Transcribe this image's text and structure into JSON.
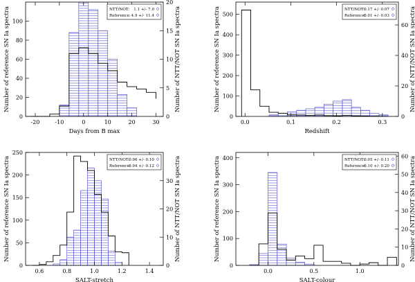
{
  "chart_data": [
    {
      "type": "bar",
      "id": "days",
      "xlabel": "Days from B max",
      "ylabel_left": "Number of reference SN Ia spectra",
      "ylabel_right": "Number of NTT/NOT SN Ia spectra",
      "xlim": [
        -24,
        33
      ],
      "ylim_left": [
        0,
        120
      ],
      "ylim_right": [
        0,
        20
      ],
      "xticks": [
        -20,
        -10,
        0,
        10,
        20,
        30
      ],
      "xtick_labels": [
        "-20",
        "-10",
        "0",
        "10",
        "20",
        "30"
      ],
      "yticks_left": [
        0,
        20,
        40,
        60,
        80,
        100
      ],
      "yticks_left_labels": [
        "0",
        "20",
        "40",
        "60",
        "80",
        "100"
      ],
      "yticks_right": [
        0,
        5,
        10,
        15,
        20
      ],
      "yticks_right_labels": [
        "0",
        "5",
        "10",
        "15",
        "20"
      ],
      "bin_edges": [
        -22,
        -18,
        -14,
        -10,
        -6,
        -2,
        2,
        6,
        10,
        14,
        18,
        22,
        26,
        30
      ],
      "series": [
        {
          "name": "NTT/NOT",
          "style": "step",
          "axis": "right",
          "color": "#000000",
          "values": [
            0,
            0,
            0.4,
            1.8,
            11,
            12,
            11,
            9.3,
            8,
            6,
            5.2,
            4.8,
            4.2,
            3.1
          ]
        },
        {
          "name": "Reference",
          "style": "hatched",
          "axis": "left",
          "color": "#5a5ad2",
          "values": [
            0,
            0,
            0,
            12,
            88,
            120,
            112,
            90,
            60,
            23,
            9,
            0,
            0,
            0
          ]
        }
      ],
      "legend": [
        {
          "label": "NTT/NOT:",
          "text": "1.1 +/- 7.0"
        },
        {
          "label": "Reference:",
          "text": "4.9 +/- 11.4"
        }
      ]
    },
    {
      "type": "bar",
      "id": "redshift",
      "xlabel": "Redshift",
      "ylabel_left": "Number of reference SN Ia spectra",
      "ylabel_right": "Number of NTT/NOT SN Ia spectra",
      "xlim": [
        -0.02,
        0.335
      ],
      "ylim_left": [
        0,
        560
      ],
      "ylim_right": [
        0,
        75
      ],
      "xticks": [
        0.0,
        0.1,
        0.2,
        0.3
      ],
      "xtick_labels": [
        "0.0",
        "0.1",
        "0.2",
        "0.3"
      ],
      "yticks_left": [
        0,
        100,
        200,
        300,
        400,
        500
      ],
      "yticks_left_labels": [
        "0",
        "100",
        "200",
        "300",
        "400",
        "500"
      ],
      "yticks_right": [
        0,
        20,
        40,
        60
      ],
      "yticks_right_labels": [
        "0",
        "20",
        "40",
        "60"
      ],
      "bin_edges": [
        -0.0075,
        0.0125,
        0.0325,
        0.0525,
        0.0725,
        0.0925,
        0.1125,
        0.1325,
        0.1525,
        0.1725,
        0.1925,
        0.2125,
        0.2325,
        0.2525,
        0.2725,
        0.2925,
        0.3125
      ],
      "series": [
        {
          "name": "NTT/NOT",
          "style": "hatched",
          "axis": "right",
          "color": "#5a5ad2",
          "values": [
            0,
            0,
            0,
            1,
            2,
            3,
            4,
            5,
            6,
            8,
            10,
            11,
            6,
            4,
            2,
            1
          ]
        },
        {
          "name": "Reference",
          "style": "step",
          "axis": "left",
          "color": "#000000",
          "values": [
            521,
            130,
            50,
            20,
            15,
            8,
            7,
            5,
            7,
            4,
            3,
            5,
            3,
            2,
            1,
            0
          ]
        }
      ],
      "legend": [
        {
          "label": "NTT/NOT:",
          "text": "0.17 +/- 0.07"
        },
        {
          "label": "Reference:",
          "text": "0.01 +/- 0.03"
        }
      ]
    },
    {
      "type": "bar",
      "id": "stretch",
      "xlabel": "SALT-stretch",
      "ylabel_left": "Number of reference SN Ia spectra",
      "ylabel_right": "Number of NTT/NOT SN Ia spectra",
      "xlim": [
        0.5,
        1.5
      ],
      "ylim_left": [
        0,
        250
      ],
      "ylim_right": [
        0,
        40
      ],
      "xticks": [
        0.6,
        0.8,
        1.0,
        1.2,
        1.4
      ],
      "xtick_labels": [
        "0.6",
        "0.8",
        "1.0",
        "1.2",
        "1.4"
      ],
      "yticks_left": [
        0,
        50,
        100,
        150,
        200,
        250
      ],
      "yticks_left_labels": [
        "0",
        "50",
        "100",
        "150",
        "200",
        "250"
      ],
      "yticks_right": [
        0,
        10,
        20,
        30
      ],
      "yticks_right_labels": [
        "0",
        "10",
        "20",
        "30"
      ],
      "bin_edges": [
        0.55,
        0.6,
        0.65,
        0.7,
        0.75,
        0.8,
        0.85,
        0.9,
        0.95,
        1.0,
        1.05,
        1.1,
        1.15,
        1.2,
        1.25
      ],
      "series": [
        {
          "name": "NTT/NOT",
          "style": "hatched",
          "axis": "right",
          "color": "#5a5ad2",
          "values": [
            0,
            0,
            0,
            0.5,
            2,
            10,
            12.5,
            26.5,
            34.5,
            30,
            23.5,
            5,
            1,
            0
          ]
        },
        {
          "name": "Reference",
          "style": "step",
          "axis": "left",
          "color": "#000000",
          "values": [
            0,
            2,
            8,
            22,
            45,
            118,
            242,
            230,
            210,
            157,
            118,
            65,
            30,
            28
          ]
        }
      ],
      "legend": [
        {
          "label": "NTT/NOT:",
          "text": "0.96 +/- 0.10"
        },
        {
          "label": "Reference:",
          "text": "0.94 +/- 0.12"
        }
      ]
    },
    {
      "type": "bar",
      "id": "colour",
      "xlabel": "SALT-colour",
      "ylabel_left": "Number of reference SN Ia spectra",
      "ylabel_right": "Number of NTT/NOT SN Ia spectra",
      "xlim": [
        -0.35,
        1.42
      ],
      "ylim_left": [
        0,
        420
      ],
      "ylim_right": [
        0,
        62
      ],
      "xticks": [
        0.0,
        0.5,
        1.0
      ],
      "xtick_labels": [
        "0.0",
        "0.5",
        "1.0"
      ],
      "yticks_left": [
        0,
        100,
        200,
        300,
        400
      ],
      "yticks_left_labels": [
        "0",
        "100",
        "200",
        "300",
        "400"
      ],
      "yticks_right": [
        0,
        10,
        20,
        30,
        40,
        50,
        60
      ],
      "yticks_right_labels": [
        "0",
        "10",
        "20",
        "30",
        "40",
        "50",
        "60"
      ],
      "bin_edges": [
        -0.2,
        -0.1,
        0.0,
        0.1,
        0.2,
        0.3,
        0.4,
        0.5,
        0.6,
        0.7,
        0.8,
        0.9,
        1.0,
        1.1,
        1.2,
        1.3,
        1.4
      ],
      "series": [
        {
          "name": "NTT/NOT",
          "style": "hatched",
          "axis": "right",
          "color": "#5a5ad2",
          "values": [
            0.4,
            6.5,
            51,
            11.7,
            4,
            1.7,
            0.7,
            0,
            0,
            0,
            0,
            0,
            0,
            0,
            0,
            0
          ]
        },
        {
          "name": "Reference",
          "style": "step",
          "axis": "left",
          "color": "#000000",
          "values": [
            0,
            80,
            195,
            60,
            20,
            35,
            25,
            75,
            15,
            15,
            8,
            0,
            5,
            10,
            0,
            30
          ]
        }
      ],
      "legend": [
        {
          "label": "NTT/NOT:",
          "text": "0.05 +/- 0.11"
        },
        {
          "label": "Reference:",
          "text": "0.10 +/- 0.20"
        }
      ]
    }
  ]
}
